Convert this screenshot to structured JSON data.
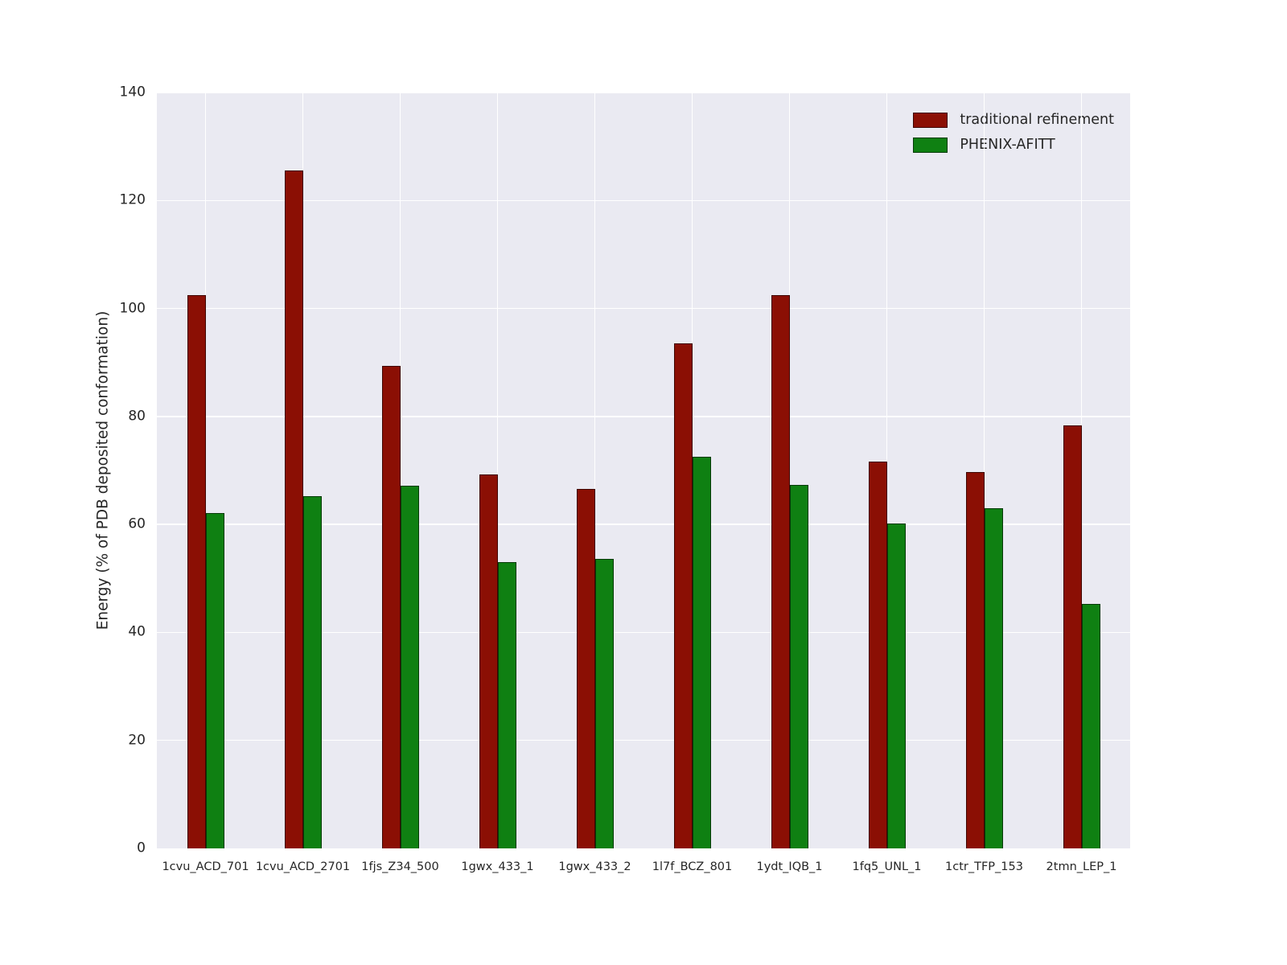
{
  "chart_data": {
    "type": "bar",
    "title": "",
    "xlabel": "",
    "ylabel": "Energy (% of PDB deposited conformation)",
    "ylim": [
      0,
      140
    ],
    "ytick_step": 20,
    "grid": true,
    "legend_position": "upper right",
    "categories": [
      "1cvu_ACD_701",
      "1cvu_ACD_2701",
      "1fjs_Z34_500",
      "1gwx_433_1",
      "1gwx_433_2",
      "1l7f_BCZ_801",
      "1ydt_IQB_1",
      "1fq5_UNL_1",
      "1ctr_TFP_153",
      "2tmn_LEP_1"
    ],
    "series": [
      {
        "name": "traditional refinement",
        "color": "#8b0f04",
        "values": [
          102.5,
          125.5,
          89.3,
          69.3,
          66.6,
          93.6,
          102.5,
          71.6,
          69.7,
          78.3
        ]
      },
      {
        "name": "PHENIX-AFITT",
        "color": "#0f8012",
        "values": [
          62.1,
          65.2,
          67.1,
          53.0,
          53.6,
          72.5,
          67.3,
          60.2,
          63.0,
          45.3
        ]
      }
    ]
  },
  "colors": {
    "figure_bg": "#ffffff",
    "plot_bg": "#eaeaf2",
    "gridline": "#ffffff",
    "tick_label": "#262626"
  }
}
